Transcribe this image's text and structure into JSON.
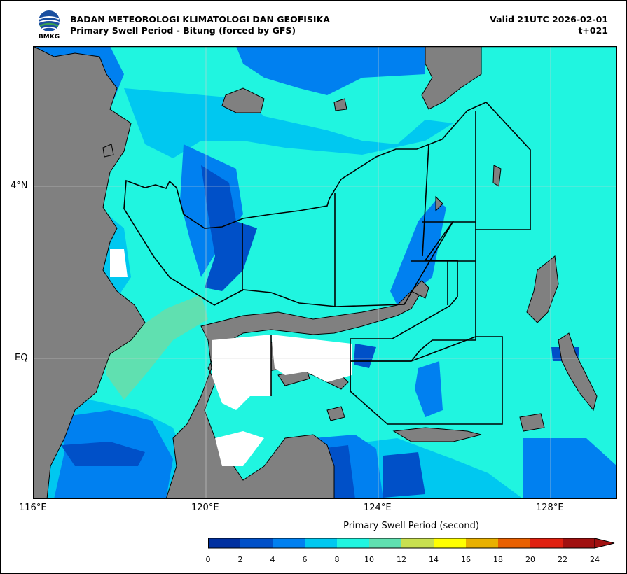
{
  "header": {
    "agency": "BADAN METEOROLOGI KLIMATOLOGI DAN GEOFISIKA",
    "product": "Primary Swell Period - Bitung (forced by GFS)",
    "valid": "Valid 21UTC 2026-02-01",
    "lead": "t+021",
    "logo_text": "BMKG"
  },
  "axes": {
    "lon_labels": [
      "116°E",
      "120°E",
      "124°E",
      "128°E"
    ],
    "lat_labels": [
      "4°N",
      "EQ"
    ]
  },
  "colorbar": {
    "title": "Primary Swell Period (second)",
    "ticks": [
      "0",
      "2",
      "4",
      "6",
      "8",
      "10",
      "12",
      "14",
      "16",
      "18",
      "20",
      "22",
      "24"
    ],
    "colors": [
      "#0030a0",
      "#0050c8",
      "#0080f0",
      "#00c8f0",
      "#20f5e0",
      "#60e0b0",
      "#c8e050",
      "#ffff00",
      "#e8b000",
      "#e86000",
      "#e02010",
      "#a01010"
    ],
    "extend": "max"
  },
  "map": {
    "land_color": "#808080",
    "zone_line_color": "#000000"
  }
}
